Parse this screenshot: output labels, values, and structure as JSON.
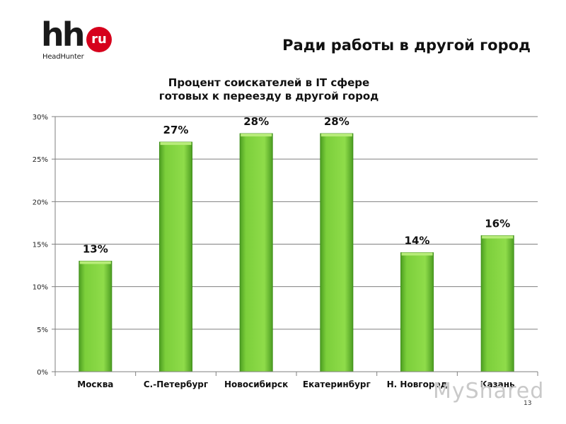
{
  "logo": {
    "text": "hh",
    "badge": "ru",
    "subtitle": "HeadHunter"
  },
  "slide_title": "Ради работы в другой город",
  "page_number": "13",
  "watermark": "MyShared",
  "chart_data": {
    "type": "bar",
    "title": [
      "Процент соискателей в IT сфере",
      "готовых к переезду в другой город"
    ],
    "categories": [
      "Москва",
      "С.-Петербург",
      "Новосибирск",
      "Екатеринбург",
      "Н. Новгород",
      "Казань"
    ],
    "values": [
      13,
      27,
      28,
      28,
      14,
      16
    ],
    "data_labels": [
      "13%",
      "27%",
      "28%",
      "28%",
      "14%",
      "16%"
    ],
    "ylim": [
      0,
      30
    ],
    "yticks": [
      0,
      5,
      10,
      15,
      20,
      25,
      30
    ],
    "ytick_labels": [
      "0%",
      "5%",
      "10%",
      "15%",
      "20%",
      "25%",
      "30%"
    ],
    "grid": true,
    "bar_color": "#7ccf3b",
    "bar_top_color": "#b8ec7a",
    "bar_edge_color": "#3f8f1a"
  }
}
